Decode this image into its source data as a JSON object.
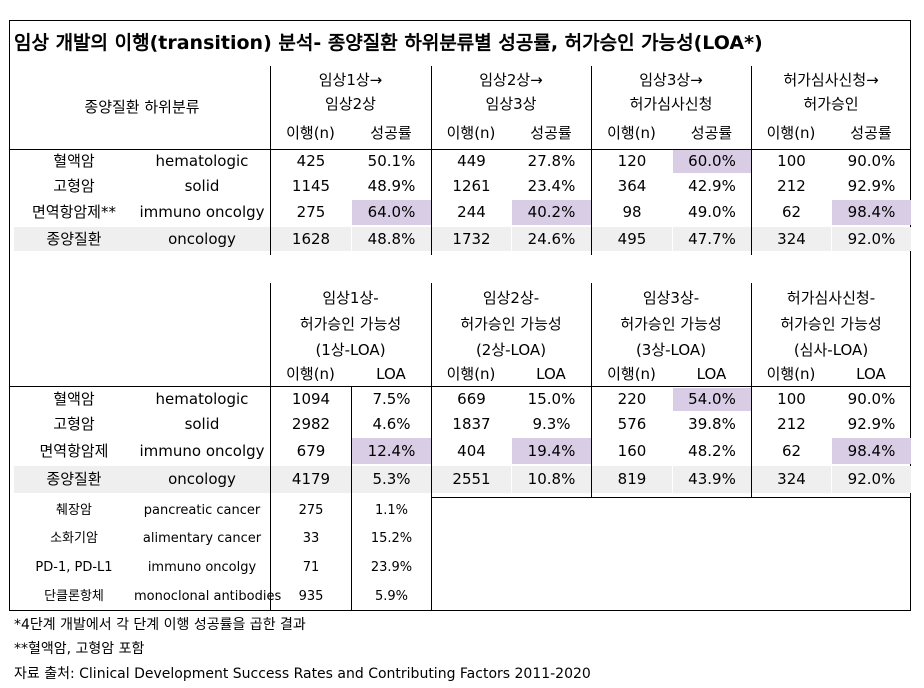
{
  "title": "임상 개발의 이행(transition) 분석- 종양질환 하위분류별 성공률, 허가승인 가능성(LOA*)",
  "table1": {
    "category_header": "종양질환 하위분류",
    "phases": [
      {
        "line1": "임상1상→",
        "line2": "임상2상"
      },
      {
        "line1": "임상2상→",
        "line2": "임상3상"
      },
      {
        "line1": "임상3상→",
        "line2": "허가심사신청"
      },
      {
        "line1": "허가심사신청→",
        "line2": "허가승인"
      }
    ],
    "sub_headers": [
      "이행(n)",
      "성공률"
    ],
    "rows": [
      {
        "ko": "혈액암",
        "en": "hematologic",
        "cells": [
          "425",
          "50.1%",
          "449",
          "27.8%",
          "120",
          "60.0%",
          "100",
          "90.0%"
        ]
      },
      {
        "ko": "고형암",
        "en": "solid",
        "cells": [
          "1145",
          "48.9%",
          "1261",
          "23.4%",
          "364",
          "42.9%",
          "212",
          "92.9%"
        ]
      },
      {
        "ko": "면역항암제**",
        "en": "immuno oncolgy",
        "cells": [
          "275",
          "64.0%",
          "244",
          "40.2%",
          "98",
          "49.0%",
          "62",
          "98.4%"
        ]
      },
      {
        "ko": "종양질환",
        "en": "oncology",
        "cells": [
          "1628",
          "48.8%",
          "1732",
          "24.6%",
          "495",
          "47.7%",
          "324",
          "92.0%"
        ]
      }
    ]
  },
  "table2": {
    "phases": [
      {
        "line1": "임상1상-",
        "line2": "허가승인 가능성",
        "line3": "(1상-LOA)"
      },
      {
        "line1": "임상2상-",
        "line2": "허가승인 가능성",
        "line3": "(2상-LOA)"
      },
      {
        "line1": "임상3상-",
        "line2": "허가승인 가능성",
        "line3": "(3상-LOA)"
      },
      {
        "line1": "허가심사신청-",
        "line2": "허가승인 가능성",
        "line3": "(심사-LOA)"
      }
    ],
    "sub_headers": [
      "이행(n)",
      "LOA"
    ],
    "rows": [
      {
        "ko": "혈액암",
        "en": "hematologic",
        "cells": [
          "1094",
          "7.5%",
          "669",
          "15.0%",
          "220",
          "54.0%",
          "100",
          "90.0%"
        ]
      },
      {
        "ko": "고형암",
        "en": "solid",
        "cells": [
          "2982",
          "4.6%",
          "1837",
          "9.3%",
          "576",
          "39.8%",
          "212",
          "92.9%"
        ]
      },
      {
        "ko": "면역항암제",
        "en": "immuno oncolgy",
        "cells": [
          "679",
          "12.4%",
          "404",
          "19.4%",
          "160",
          "48.2%",
          "62",
          "98.4%"
        ]
      },
      {
        "ko": "종양질환",
        "en": "oncology",
        "cells": [
          "4179",
          "5.3%",
          "2551",
          "10.8%",
          "819",
          "43.9%",
          "324",
          "92.0%"
        ]
      }
    ],
    "extra_rows": [
      {
        "ko": "췌장암",
        "en": "pancreatic cancer",
        "n": "275",
        "loa": "1.1%"
      },
      {
        "ko": "소화기암",
        "en": "alimentary cancer",
        "n": "33",
        "loa": "15.2%"
      },
      {
        "ko": "PD-1, PD-L1",
        "en": "immuno oncolgy",
        "n": "71",
        "loa": "23.9%"
      },
      {
        "ko": "단클론항체",
        "en": "monoclonal antibodies",
        "n": "935",
        "loa": "5.9%"
      }
    ]
  },
  "footnotes": [
    "*4단계 개발에서 각 단계 이행 성공률을 곱한 결과",
    "**혈액암, 고형암 포함",
    "자료 출처: Clinical Development Success Rates and Contributing Factors 2011-2020"
  ],
  "colors": {
    "highlight": "#d9cde6",
    "total_row": "#efefef"
  }
}
